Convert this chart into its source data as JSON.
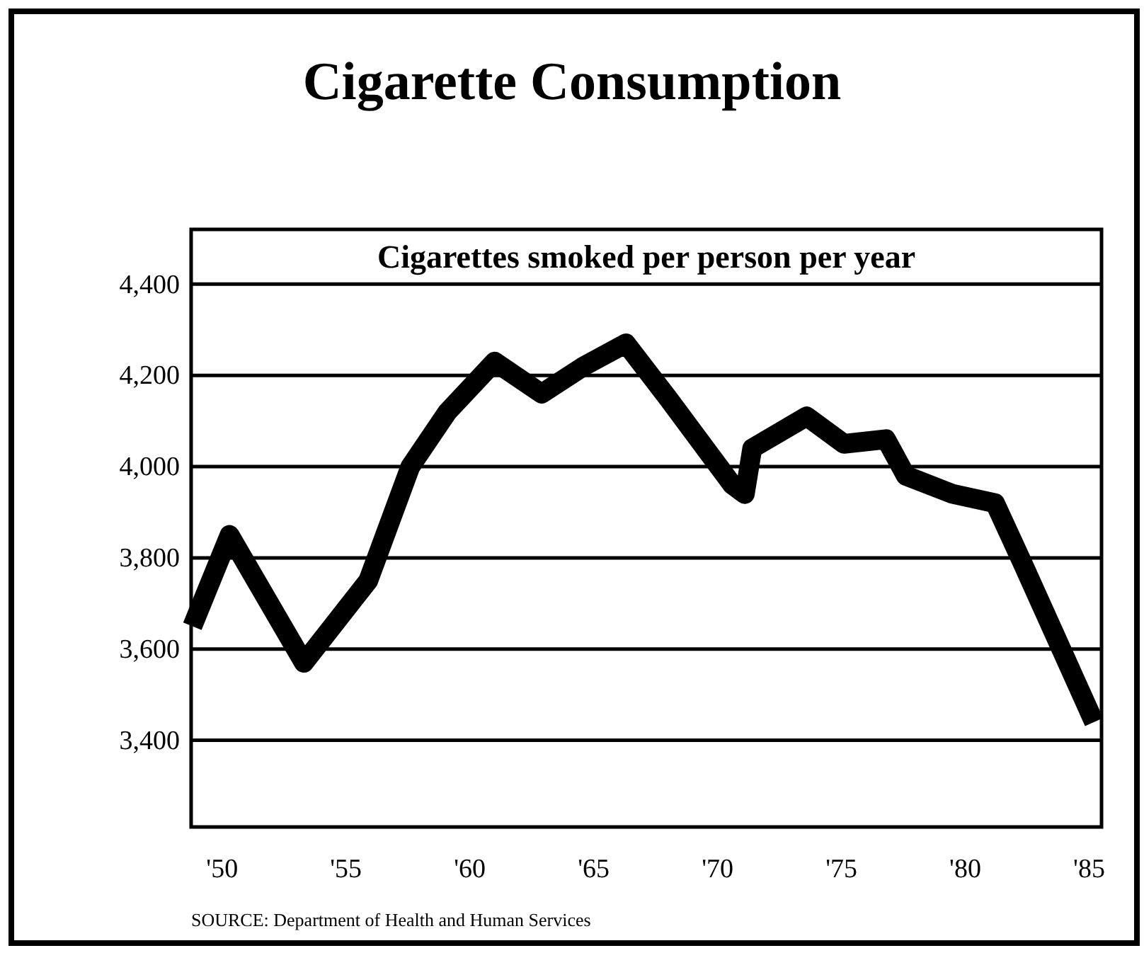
{
  "chart_data": {
    "type": "line",
    "title": "Cigarette Consumption",
    "subtitle": "Cigarettes smoked per person per year",
    "x": [
      1948.8,
      1950.3,
      1953.3,
      1955.9,
      1957.6,
      1959.1,
      1961,
      1962.9,
      1964.6,
      1966.3,
      1968,
      1970.6,
      1971.1,
      1971.4,
      1973.6,
      1975.1,
      1976.8,
      1977.6,
      1979.5,
      1981.2,
      1982.3,
      1985.2
    ],
    "series": [
      {
        "color": "#000000",
        "values": [
          3650,
          3850,
          3570,
          3750,
          4000,
          4120,
          4230,
          4160,
          4220,
          4270,
          4150,
          3960,
          3940,
          4040,
          4110,
          4050,
          4060,
          3980,
          3940,
          3920,
          3790,
          3440
        ]
      }
    ],
    "xlim": [
      1948.75,
      1985.5
    ],
    "xticks": [
      {
        "value": 1950,
        "label": "'50"
      },
      {
        "value": 1955,
        "label": "'55"
      },
      {
        "value": 1960,
        "label": "'60"
      },
      {
        "value": 1965,
        "label": "'65"
      },
      {
        "value": 1970,
        "label": "'70"
      },
      {
        "value": 1975,
        "label": "'75"
      },
      {
        "value": 1980,
        "label": "'80"
      },
      {
        "value": 1985,
        "label": "'85"
      }
    ],
    "ylim": [
      3210,
      4520
    ],
    "yticks": [
      {
        "value": 3400,
        "label": "3,400"
      },
      {
        "value": 3600,
        "label": "3,600"
      },
      {
        "value": 3800,
        "label": "3,800"
      },
      {
        "value": 4000,
        "label": "4,000"
      },
      {
        "value": 4200,
        "label": "4,200"
      },
      {
        "value": 4400,
        "label": "4,400"
      }
    ],
    "grid": "y",
    "marker": "none",
    "line_style": "solid",
    "annotations": [
      "SOURCE: Department of Health and Human Services"
    ]
  }
}
